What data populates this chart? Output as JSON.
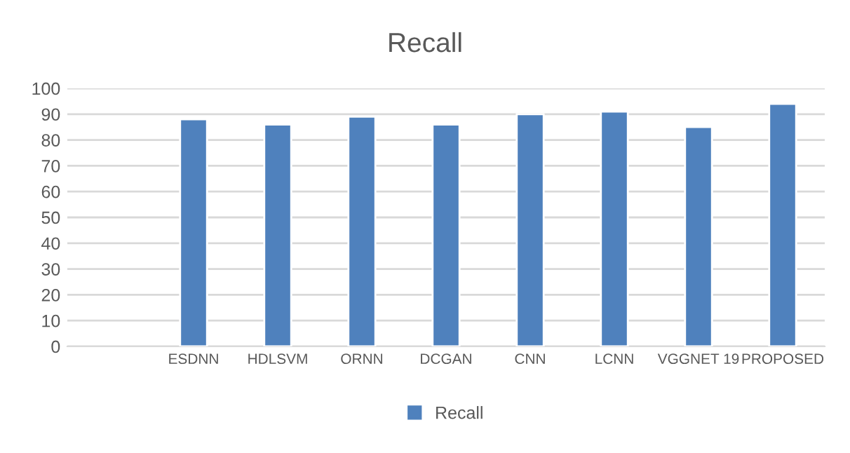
{
  "chart_data": {
    "type": "bar",
    "title": "Recall",
    "categories": [
      null,
      "ESDNN",
      "HDLSVM",
      "ORNN",
      "DCGAN",
      "CNN",
      "LCNN",
      "VGGNET 19",
      "PROPOSED"
    ],
    "series": [
      {
        "name": "Recall",
        "color": "#4f81bd",
        "values": [
          null,
          88,
          86,
          89,
          86,
          90,
          91,
          85,
          94
        ]
      }
    ],
    "ylim": [
      0,
      100
    ],
    "yticks": [
      0,
      10,
      20,
      30,
      40,
      50,
      60,
      70,
      80,
      90,
      100
    ],
    "grid": "y",
    "legend": "bottom"
  }
}
